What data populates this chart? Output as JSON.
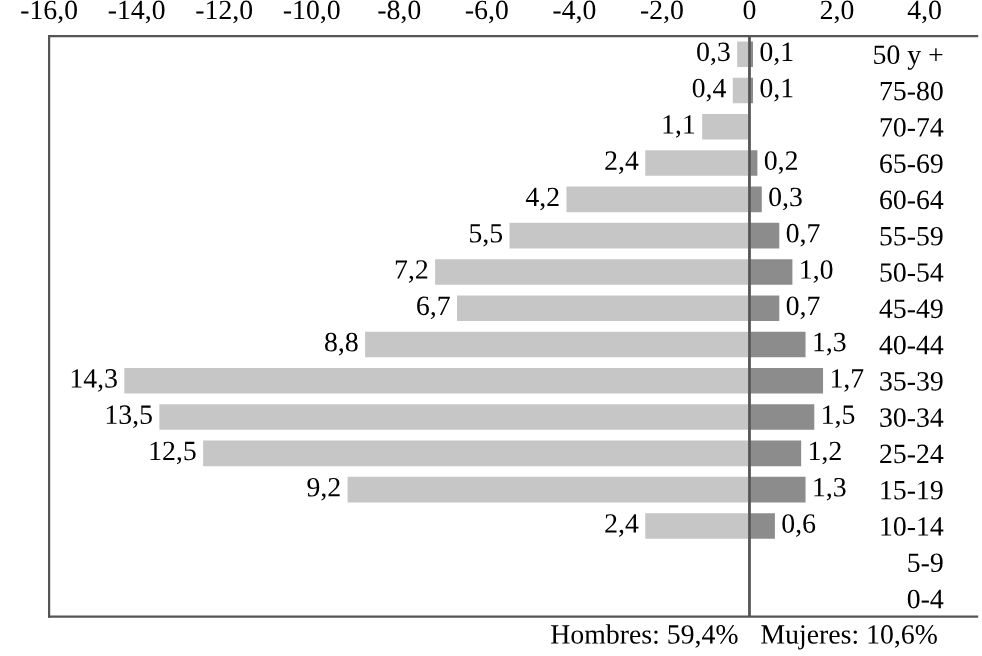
{
  "chart_data": {
    "type": "bar",
    "orientation": "horizontal",
    "categories": [
      "50 y +",
      "75-80",
      "70-74",
      "65-69",
      "60-64",
      "55-59",
      "50-54",
      "45-49",
      "40-44",
      "35-39",
      "30-34",
      "25-24",
      "15-19",
      "10-14",
      "5-9",
      "0-4"
    ],
    "series": [
      {
        "color": "#c6c6c6",
        "values": [
          0.3,
          0.4,
          1.1,
          2.4,
          4.2,
          5.5,
          7.2,
          6.7,
          8.8,
          14.3,
          13.5,
          12.5,
          9.2,
          2.4,
          null,
          null
        ],
        "base": [
          -0.3,
          -0.4,
          -1.1,
          -2.4,
          -4.2,
          -5.5,
          -7.2,
          -6.7,
          -8.8,
          -14.3,
          -13.5,
          -12.5,
          -9.2,
          -2.4,
          null,
          null
        ],
        "value_labels": [
          "0,3",
          "0,4",
          "1,1",
          "2,4",
          "4,2",
          "5,5",
          "7,2",
          "6,7",
          "8,8",
          "14,3",
          "13,5",
          "12,5",
          "9,2",
          "2,4",
          null,
          null
        ]
      },
      {
        "color": "#8c8c8c",
        "values": [
          0.1,
          0.1,
          null,
          0.2,
          0.3,
          0.7,
          1.0,
          0.7,
          1.3,
          1.7,
          1.5,
          1.2,
          1.3,
          0.6,
          null,
          null
        ],
        "value_labels": [
          "0,1",
          "0,1",
          null,
          "0,2",
          "0,3",
          "0,7",
          "1,0",
          "0,7",
          "1,3",
          "1,7",
          "1,5",
          "1,2",
          "1,3",
          "0,6",
          null,
          null
        ]
      }
    ],
    "xlim": [
      -16,
      5.2
    ],
    "xticks": [
      {
        "value": -16,
        "label": "-16,0"
      },
      {
        "value": -14,
        "label": "-14,0"
      },
      {
        "value": -12,
        "label": "-12,0"
      },
      {
        "value": -10,
        "label": "-10,0"
      },
      {
        "value": -8,
        "label": "-8,0"
      },
      {
        "value": -6,
        "label": "-6,0"
      },
      {
        "value": -4,
        "label": "-4,0"
      },
      {
        "value": -2,
        "label": "-2,0"
      },
      0,
      {
        "value": 2,
        "label": "2,0"
      },
      {
        "value": 4,
        "label": "4,0"
      }
    ],
    "ref_lines": [
      {
        "axis": "x",
        "value": 0,
        "color": "#555555"
      }
    ],
    "annotations": [
      "Hombres: 59,4%",
      "Mujeres: 10,6%"
    ],
    "grid": false,
    "legend": false
  }
}
